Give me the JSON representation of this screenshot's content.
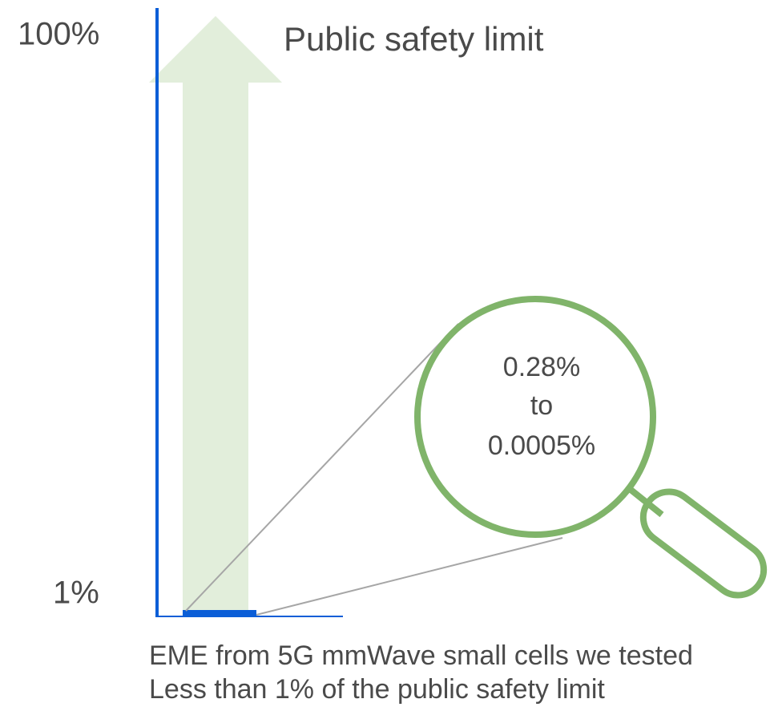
{
  "axis": {
    "top_label": "100%",
    "bottom_label": "1%"
  },
  "arrow": {
    "label": "Public safety limit"
  },
  "magnifier": {
    "lines": [
      "0.28%",
      "to",
      "0.0005%"
    ]
  },
  "caption": {
    "lines": [
      "EME from 5G mmWave small cells we tested",
      "Less than 1% of the public safety limit"
    ]
  }
}
